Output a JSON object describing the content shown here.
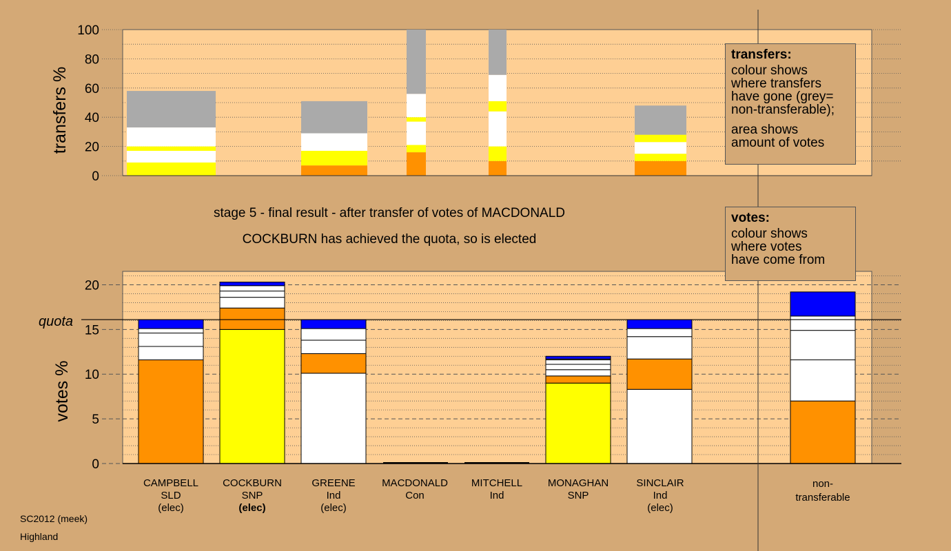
{
  "chart_data": [
    {
      "type": "bar",
      "stacked": true,
      "ylabel": "transfers %",
      "ylim": [
        0,
        100
      ],
      "yticks": [
        0,
        20,
        40,
        60,
        80,
        100
      ],
      "grid": "dotted",
      "categories": [
        "CAMPBELL",
        "COCKBURN",
        "GREENE",
        "MACDONALD",
        "MITCHELL",
        "MONAGHAN",
        "SINCLAIR"
      ],
      "bars": [
        {
          "category": "CAMPBELL",
          "segments": [
            {
              "color": "#ffff00",
              "value": 9
            },
            {
              "color": "#ffffff",
              "value": 8
            },
            {
              "color": "#ffff00",
              "value": 3
            },
            {
              "color": "#ffffff",
              "value": 13
            },
            {
              "color": "#aaaaaa",
              "value": 25
            }
          ]
        },
        {
          "category": "COCKBURN",
          "segments": []
        },
        {
          "category": "GREENE",
          "segments": [
            {
              "color": "#ff9100",
              "value": 7
            },
            {
              "color": "#ffff00",
              "value": 10
            },
            {
              "color": "#ffffff",
              "value": 12
            },
            {
              "color": "#aaaaaa",
              "value": 22
            }
          ]
        },
        {
          "category": "MACDONALD",
          "segments": [
            {
              "color": "#ff9100",
              "value": 16
            },
            {
              "color": "#ffff00",
              "value": 5
            },
            {
              "color": "#ffffff",
              "value": 16
            },
            {
              "color": "#ffff00",
              "value": 3
            },
            {
              "color": "#ffffff",
              "value": 16
            },
            {
              "color": "#aaaaaa",
              "value": 44
            }
          ]
        },
        {
          "category": "MITCHELL",
          "segments": [
            {
              "color": "#ff9100",
              "value": 10
            },
            {
              "color": "#ffff00",
              "value": 10
            },
            {
              "color": "#ffffff",
              "value": 24
            },
            {
              "color": "#ffff00",
              "value": 7
            },
            {
              "color": "#ffffff",
              "value": 18
            },
            {
              "color": "#aaaaaa",
              "value": 31
            }
          ]
        },
        {
          "category": "MONAGHAN",
          "segments": []
        },
        {
          "category": "SINCLAIR",
          "segments": [
            {
              "color": "#ff9100",
              "value": 10
            },
            {
              "color": "#ffff00",
              "value": 5
            },
            {
              "color": "#ffffff",
              "value": 8
            },
            {
              "color": "#ffff00",
              "value": 5
            },
            {
              "color": "#aaaaaa",
              "value": 20
            }
          ]
        }
      ]
    },
    {
      "type": "bar",
      "stacked": true,
      "ylabel": "votes %",
      "ylim": [
        0,
        21.5
      ],
      "yticks": [
        0,
        5,
        10,
        15,
        20
      ],
      "quota": 16.1,
      "quota_label": "quota",
      "grid": "dotted",
      "categories": [
        "CAMPBELL",
        "COCKBURN",
        "GREENE",
        "MACDONALD",
        "MITCHELL",
        "MONAGHAN",
        "SINCLAIR",
        "non-transferable"
      ],
      "bars": [
        {
          "category": "CAMPBELL",
          "segments": [
            {
              "color": "#ff9100",
              "value": 11.6
            },
            {
              "color": "#ffffff",
              "value": 1.5
            },
            {
              "color": "#ffffff",
              "value": 1.5
            },
            {
              "color": "#ffffff",
              "value": 0.5
            },
            {
              "color": "#0000ff",
              "value": 1.0
            }
          ]
        },
        {
          "category": "COCKBURN",
          "segments": [
            {
              "color": "#ffff00",
              "value": 15.0
            },
            {
              "color": "#ff9100",
              "value": 2.4
            },
            {
              "color": "#ffffff",
              "value": 1.2
            },
            {
              "color": "#ffffff",
              "value": 0.7
            },
            {
              "color": "#ffffff",
              "value": 0.6
            },
            {
              "color": "#0000ff",
              "value": 0.4
            }
          ]
        },
        {
          "category": "GREENE",
          "segments": [
            {
              "color": "#ffffff",
              "value": 10.1
            },
            {
              "color": "#ff9100",
              "value": 2.2
            },
            {
              "color": "#ffffff",
              "value": 1.5
            },
            {
              "color": "#ffffff",
              "value": 1.3
            },
            {
              "color": "#0000ff",
              "value": 1.0
            }
          ]
        },
        {
          "category": "MACDONALD",
          "segments": []
        },
        {
          "category": "MITCHELL",
          "segments": []
        },
        {
          "category": "MONAGHAN",
          "segments": [
            {
              "color": "#ffff00",
              "value": 9.0
            },
            {
              "color": "#ff9100",
              "value": 0.8
            },
            {
              "color": "#ffffff",
              "value": 0.7
            },
            {
              "color": "#ffffff",
              "value": 0.6
            },
            {
              "color": "#ffffff",
              "value": 0.5
            },
            {
              "color": "#ffffff",
              "value": 0.1
            },
            {
              "color": "#0000ff",
              "value": 0.3
            }
          ]
        },
        {
          "category": "SINCLAIR",
          "segments": [
            {
              "color": "#ffffff",
              "value": 8.3
            },
            {
              "color": "#ff9100",
              "value": 3.4
            },
            {
              "color": "#ffffff",
              "value": 2.5
            },
            {
              "color": "#ffffff",
              "value": 0.9
            },
            {
              "color": "#0000ff",
              "value": 1.0
            }
          ]
        },
        {
          "category": "non-transferable",
          "segments": [
            {
              "color": "#ff9100",
              "value": 7.0
            },
            {
              "color": "#ffffff",
              "value": 4.6
            },
            {
              "color": "#ffffff",
              "value": 3.3
            },
            {
              "color": "#ffffff",
              "value": 1.6
            },
            {
              "color": "#0000ff",
              "value": 2.7
            }
          ]
        }
      ]
    }
  ],
  "captions": {
    "line1": "stage 5 - final result - after transfer of votes of MACDONALD",
    "line2": "COCKBURN has achieved the quota, so is elected"
  },
  "legend_transfers": {
    "title": "transfers:",
    "lines": [
      "colour shows",
      "where transfers",
      "have gone (grey=",
      "non-transferable);"
    ],
    "lines2": [
      "area shows",
      "amount of votes"
    ]
  },
  "legend_votes": {
    "title": "votes:",
    "lines": [
      "colour shows",
      "where votes",
      "have come from"
    ]
  },
  "candidates": [
    {
      "name": "CAMPBELL",
      "party": "SLD",
      "status": "(elec)",
      "bold": false
    },
    {
      "name": "COCKBURN",
      "party": "SNP",
      "status": "(elec)",
      "bold": true
    },
    {
      "name": "GREENE",
      "party": "Ind",
      "status": "(elec)",
      "bold": false
    },
    {
      "name": "MACDONALD",
      "party": "Con",
      "status": "",
      "bold": false
    },
    {
      "name": "MITCHELL",
      "party": "Ind",
      "status": "",
      "bold": false
    },
    {
      "name": "MONAGHAN",
      "party": "SNP",
      "status": "",
      "bold": false
    },
    {
      "name": "SINCLAIR",
      "party": "Ind",
      "status": "(elec)",
      "bold": false
    }
  ],
  "nontransferable_label": {
    "line1": "non-",
    "line2": "transferable"
  },
  "footer": {
    "line1": "SC2012 (meek)",
    "line2": "Highland"
  }
}
